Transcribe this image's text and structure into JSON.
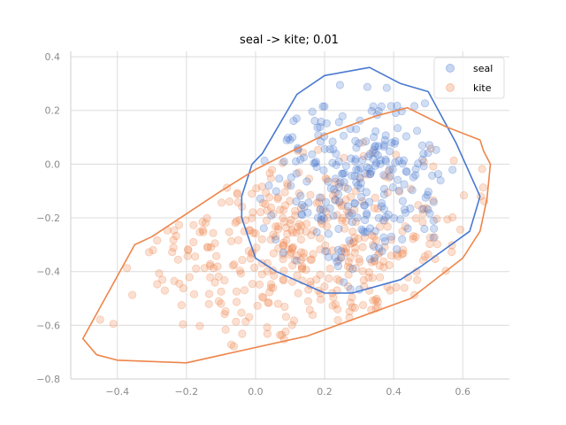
{
  "chart_data": {
    "type": "scatter",
    "title": "seal -> kite; 0.01",
    "xlabel": "",
    "ylabel": "",
    "xlim": [
      -0.535,
      0.735
    ],
    "ylim": [
      -0.8,
      0.42
    ],
    "xticks": [
      -0.4,
      -0.2,
      0.0,
      0.2,
      0.4,
      0.6
    ],
    "xtick_labels": [
      "−0.4",
      "−0.2",
      "0.0",
      "0.2",
      "0.4",
      "0.6"
    ],
    "yticks": [
      0.4,
      0.2,
      0.0,
      -0.2,
      -0.4,
      -0.6,
      -0.8
    ],
    "ytick_labels": [
      "0.4",
      "0.2",
      "0.0",
      "−0.2",
      "−0.4",
      "−0.6",
      "−0.8"
    ],
    "grid": true,
    "legend_position": "top-right",
    "series": [
      {
        "name": "seal",
        "color": "#4878cf",
        "point_alpha": 0.25,
        "cluster": {
          "center": [
            0.3,
            -0.05
          ],
          "spread": [
            0.15,
            0.19
          ],
          "count": 260
        },
        "hull": [
          [
            -0.01,
            0.0
          ],
          [
            0.02,
            0.04
          ],
          [
            0.12,
            0.26
          ],
          [
            0.2,
            0.33
          ],
          [
            0.33,
            0.36
          ],
          [
            0.42,
            0.3
          ],
          [
            0.5,
            0.27
          ],
          [
            0.58,
            0.08
          ],
          [
            0.65,
            -0.12
          ],
          [
            0.62,
            -0.25
          ],
          [
            0.48,
            -0.38
          ],
          [
            0.42,
            -0.43
          ],
          [
            0.28,
            -0.48
          ],
          [
            0.2,
            -0.48
          ],
          [
            0.06,
            -0.4
          ],
          [
            0.0,
            -0.35
          ],
          [
            -0.04,
            -0.2
          ],
          [
            -0.04,
            -0.12
          ]
        ]
      },
      {
        "name": "kite",
        "color": "#ee854a",
        "point_alpha": 0.25,
        "cluster": {
          "center": [
            0.15,
            -0.3
          ],
          "spread": [
            0.27,
            0.2
          ],
          "count": 420
        },
        "hull": [
          [
            -0.5,
            -0.65
          ],
          [
            -0.46,
            -0.71
          ],
          [
            -0.4,
            -0.73
          ],
          [
            -0.2,
            -0.74
          ],
          [
            0.15,
            -0.64
          ],
          [
            0.45,
            -0.5
          ],
          [
            0.6,
            -0.35
          ],
          [
            0.65,
            -0.25
          ],
          [
            0.67,
            -0.13
          ],
          [
            0.68,
            0.0
          ],
          [
            0.66,
            0.05
          ],
          [
            0.65,
            0.09
          ],
          [
            0.55,
            0.14
          ],
          [
            0.44,
            0.21
          ],
          [
            0.35,
            0.18
          ],
          [
            0.2,
            0.11
          ],
          [
            0.0,
            -0.02
          ],
          [
            -0.1,
            -0.1
          ],
          [
            -0.3,
            -0.27
          ],
          [
            -0.35,
            -0.3
          ]
        ]
      }
    ]
  }
}
